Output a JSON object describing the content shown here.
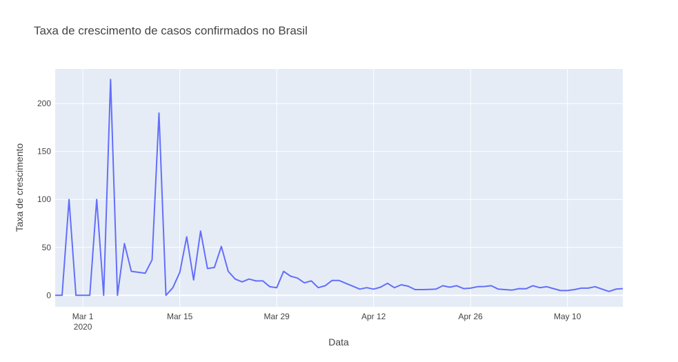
{
  "chart_data": {
    "type": "line",
    "title": "Taxa de crescimento de casos confirmados no Brasil",
    "xlabel": "Data",
    "ylabel": "Taxa de crescimento",
    "x_tick_labels": [
      "Mar 1",
      "Mar 15",
      "Mar 29",
      "Apr 12",
      "Apr 26",
      "May 10"
    ],
    "x_tick_year": "2020",
    "y_ticks": [
      0,
      50,
      100,
      150,
      200
    ],
    "ylim": [
      -12,
      236
    ],
    "xlim": [
      "2020-02-26",
      "2020-05-18"
    ],
    "grid": true,
    "colors": {
      "line": "#636efa",
      "plot_bg": "#e5ecf6",
      "grid": "#ffffff",
      "text": "#444444"
    },
    "series": [
      {
        "x": [
          "2020-02-26",
          "2020-02-27",
          "2020-02-28",
          "2020-02-29",
          "2020-03-01",
          "2020-03-02",
          "2020-03-03",
          "2020-03-04",
          "2020-03-05",
          "2020-03-06",
          "2020-03-07",
          "2020-03-08",
          "2020-03-09",
          "2020-03-10",
          "2020-03-11",
          "2020-03-12",
          "2020-03-13",
          "2020-03-14",
          "2020-03-15",
          "2020-03-16",
          "2020-03-17",
          "2020-03-18",
          "2020-03-19",
          "2020-03-20",
          "2020-03-21",
          "2020-03-22",
          "2020-03-23",
          "2020-03-24",
          "2020-03-25",
          "2020-03-26",
          "2020-03-27",
          "2020-03-28",
          "2020-03-29",
          "2020-03-30",
          "2020-03-31",
          "2020-04-01",
          "2020-04-02",
          "2020-04-03",
          "2020-04-04",
          "2020-04-05",
          "2020-04-06",
          "2020-04-07",
          "2020-04-08",
          "2020-04-09",
          "2020-04-10",
          "2020-04-11",
          "2020-04-12",
          "2020-04-13",
          "2020-04-14",
          "2020-04-15",
          "2020-04-16",
          "2020-04-17",
          "2020-04-18",
          "2020-04-19",
          "2020-04-20",
          "2020-04-21",
          "2020-04-22",
          "2020-04-23",
          "2020-04-24",
          "2020-04-25",
          "2020-04-26",
          "2020-04-27",
          "2020-04-28",
          "2020-04-29",
          "2020-04-30",
          "2020-05-01",
          "2020-05-02",
          "2020-05-03",
          "2020-05-04",
          "2020-05-05",
          "2020-05-06",
          "2020-05-07",
          "2020-05-08",
          "2020-05-09",
          "2020-05-10",
          "2020-05-11",
          "2020-05-12",
          "2020-05-13",
          "2020-05-14",
          "2020-05-15",
          "2020-05-16",
          "2020-05-17",
          "2020-05-18"
        ],
        "values": [
          0,
          0,
          100,
          0,
          0,
          0,
          100,
          0,
          225,
          0,
          54,
          25,
          24,
          23,
          37,
          190,
          0,
          8,
          24,
          61,
          16,
          67,
          28,
          29,
          51,
          25,
          17,
          14,
          17,
          15,
          15,
          9,
          8,
          25,
          20,
          18,
          13,
          15,
          8,
          10,
          15.5,
          15.5,
          12.5,
          9.5,
          6.5,
          8,
          6.5,
          8.5,
          12.5,
          8,
          11,
          9.5,
          6,
          6,
          6.2,
          6.5,
          10,
          8.5,
          10,
          7,
          7.5,
          9,
          9.2,
          10,
          6.5,
          6,
          5.5,
          7,
          6.8,
          10,
          8,
          9,
          7,
          5,
          5,
          6,
          7.5,
          7.5,
          9,
          6.5,
          4,
          6.5,
          7
        ]
      }
    ]
  }
}
